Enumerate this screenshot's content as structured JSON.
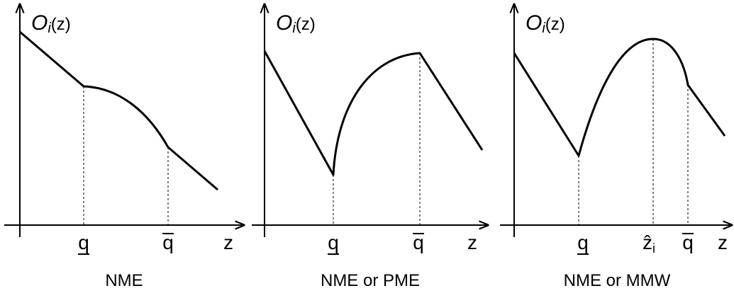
{
  "panels": [
    {
      "y_label": {
        "symbol": "O",
        "subscript": "i",
        "argument": "(z)"
      },
      "x_labels": [
        "q",
        "q",
        "z"
      ],
      "caption": "NME"
    },
    {
      "y_label": {
        "symbol": "O",
        "subscript": "i",
        "argument": "(z)"
      },
      "x_labels": [
        "q",
        "q",
        "z"
      ],
      "caption": "NME or PME"
    },
    {
      "y_label": {
        "symbol": "O",
        "subscript": "i",
        "argument": "(z)"
      },
      "x_labels": [
        "q",
        "ẑ",
        "q",
        "z"
      ],
      "hat_subscript": "i",
      "caption": "NME or MMW"
    }
  ]
}
